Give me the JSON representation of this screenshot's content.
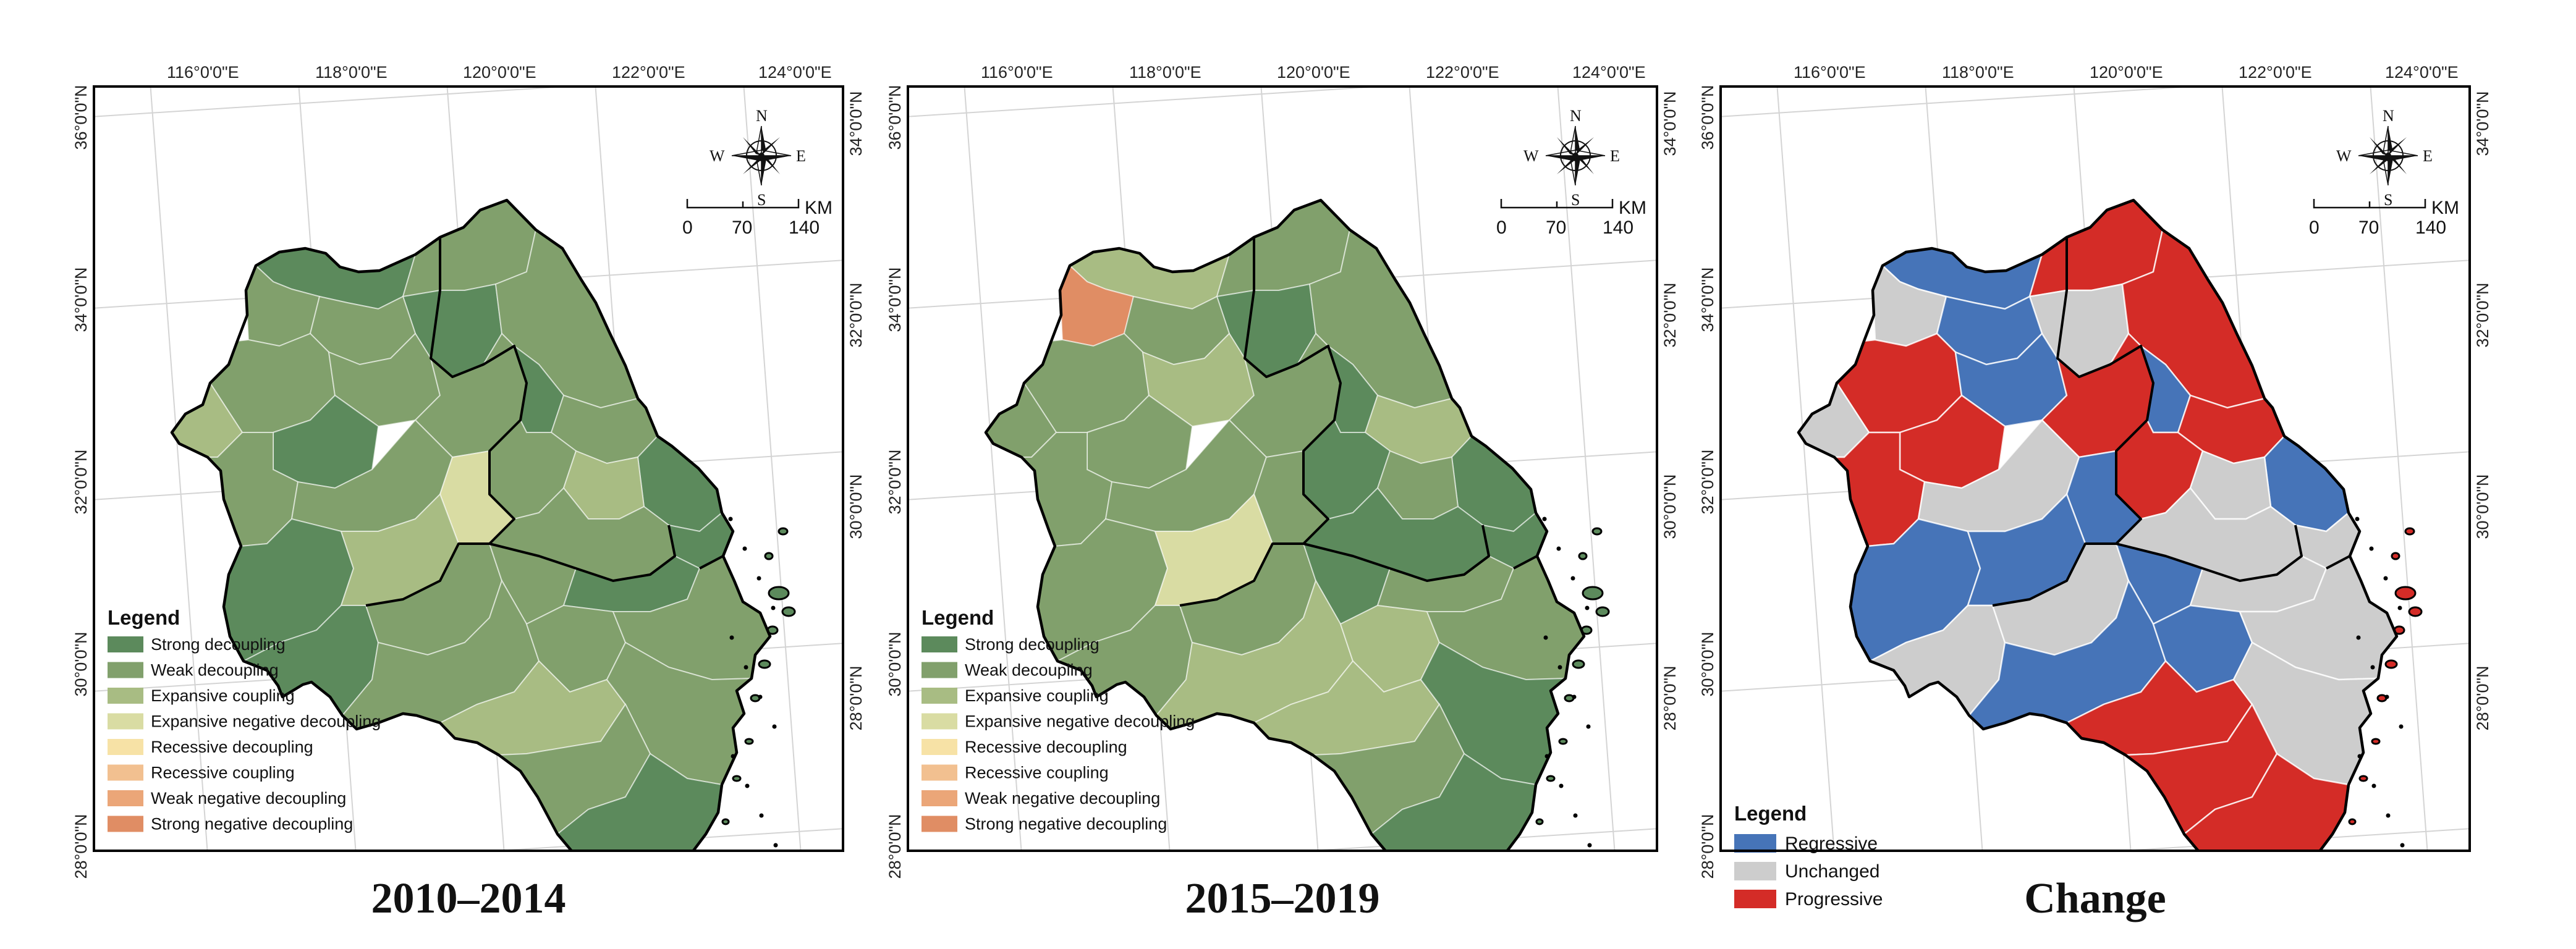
{
  "panels": [
    {
      "title": "2010–2014",
      "legend_title": "Legend"
    },
    {
      "title": "2015–2019",
      "legend_title": "Legend"
    },
    {
      "title": "Change",
      "legend_title": "Legend"
    }
  ],
  "longitude_labels": [
    "116°0'0\"E",
    "118°0'0\"E",
    "120°0'0\"E",
    "122°0'0\"E",
    "124°0'0\"E"
  ],
  "latitude_labels_left": [
    "36°0'0\"N",
    "34°0'0\"N",
    "32°0'0\"N",
    "30°0'0\"N",
    "28°0'0\"N"
  ],
  "latitude_labels_right": [
    "34°0'0\"N",
    "32°0'0\"N",
    "30°0'0\"N",
    "28°0'0\"N"
  ],
  "compass": {
    "n": "N",
    "s": "S",
    "e": "E",
    "w": "W"
  },
  "scale_bar": {
    "unit": "KM",
    "ticks": [
      "0",
      "70",
      "140"
    ]
  },
  "decoupling_legend": [
    {
      "label": "Strong decoupling",
      "color": "#5c8a5c"
    },
    {
      "label": "Weak decoupling",
      "color": "#81a06c"
    },
    {
      "label": "Expansive coupling",
      "color": "#a8bc83"
    },
    {
      "label": "Expansive negative decoupling",
      "color": "#d9dca3"
    },
    {
      "label": "Recessive decoupling",
      "color": "#f7e2a6"
    },
    {
      "label": "Recessive coupling",
      "color": "#f2c090"
    },
    {
      "label": "Weak negative decoupling",
      "color": "#eba678"
    },
    {
      "label": "Strong negative decoupling",
      "color": "#e08d64"
    }
  ],
  "change_legend": [
    {
      "label": "Regressive",
      "color": "#4674b8"
    },
    {
      "label": "Unchanged",
      "color": "#cdcdcd"
    },
    {
      "label": "Progressive",
      "color": "#d42c27"
    }
  ]
}
